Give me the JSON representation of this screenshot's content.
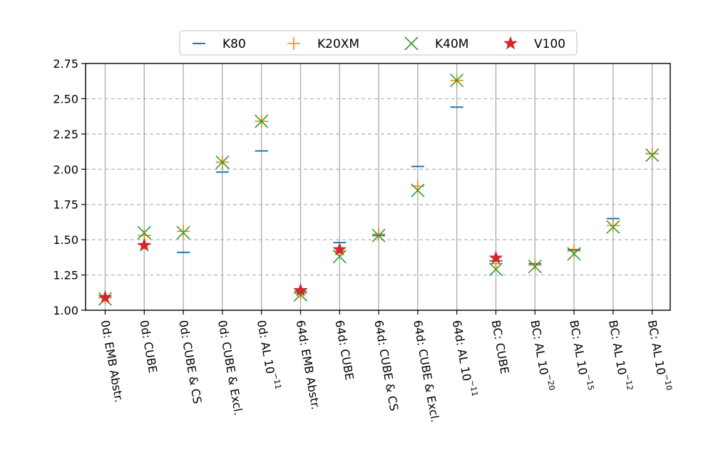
{
  "chart_data": {
    "type": "scatter",
    "categories": [
      "0d: EMB Abstr.",
      "0d: CUBE",
      "0d: CUBE & CS",
      "0d: CUBE & Excl.",
      "0d: AL 10^-11",
      "64d: EMB Abstr.",
      "64d: CUBE",
      "64d: CUBE & CS",
      "64d: CUBE & Excl.",
      "64d: AL 10^-11",
      "BC: CUBE",
      "BC: AL 10^-20",
      "BC: AL 10^-15",
      "BC: AL 10^-12",
      "BC: AL 10^-10"
    ],
    "category_labels": [
      {
        "text": "0d: EMB Abstr.",
        "sup": ""
      },
      {
        "text": "0d: CUBE",
        "sup": ""
      },
      {
        "text": "0d: CUBE & CS",
        "sup": ""
      },
      {
        "text": "0d: CUBE & Excl.",
        "sup": ""
      },
      {
        "text": "0d: AL 10",
        "sup": "−11"
      },
      {
        "text": "64d: EMB Abstr.",
        "sup": ""
      },
      {
        "text": "64d: CUBE",
        "sup": ""
      },
      {
        "text": "64d: CUBE & CS",
        "sup": ""
      },
      {
        "text": "64d: CUBE & Excl.",
        "sup": ""
      },
      {
        "text": "64d: AL 10",
        "sup": "−11"
      },
      {
        "text": "BC: CUBE",
        "sup": ""
      },
      {
        "text": "BC: AL 10",
        "sup": "−20"
      },
      {
        "text": "BC: AL 10",
        "sup": "−15"
      },
      {
        "text": "BC: AL 10",
        "sup": "−12"
      },
      {
        "text": "BC: AL 10",
        "sup": "−10"
      }
    ],
    "series": [
      {
        "name": "K80",
        "marker": "hline",
        "color": "#1f77b4",
        "values": [
          1.09,
          1.47,
          1.41,
          1.98,
          2.13,
          1.13,
          1.48,
          1.53,
          2.02,
          2.44,
          1.35,
          1.33,
          1.43,
          1.65,
          2.11
        ]
      },
      {
        "name": "K20XM",
        "marker": "plus",
        "color": "#ff7f0e",
        "values": [
          1.09,
          1.53,
          1.56,
          2.05,
          2.34,
          1.12,
          1.42,
          1.54,
          1.88,
          2.63,
          1.33,
          1.32,
          1.42,
          1.6,
          2.11
        ]
      },
      {
        "name": "K40M",
        "marker": "x",
        "color": "#2ca02c",
        "values": [
          1.08,
          1.55,
          1.55,
          2.05,
          2.34,
          1.11,
          1.38,
          1.53,
          1.85,
          2.63,
          1.29,
          1.31,
          1.4,
          1.59,
          2.1
        ]
      },
      {
        "name": "V100",
        "marker": "star",
        "color": "#d62728",
        "values": [
          1.09,
          1.46,
          null,
          null,
          null,
          1.14,
          1.43,
          null,
          null,
          null,
          1.37,
          null,
          null,
          null,
          null
        ]
      }
    ],
    "yticks": [
      "1.00",
      "1.25",
      "1.50",
      "1.75",
      "2.00",
      "2.25",
      "2.50",
      "2.75"
    ],
    "ylim": [
      1.0,
      2.75
    ],
    "xlabel": "",
    "ylabel": "",
    "title": "",
    "grid": {
      "vertical": "solid",
      "horizontal": "dashed"
    },
    "legend_position": "top-center"
  }
}
